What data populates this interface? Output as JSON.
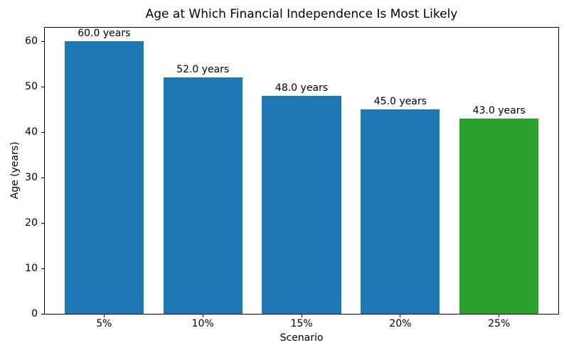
{
  "chart_data": {
    "type": "bar",
    "title": "Age at Which Financial Independence Is Most Likely",
    "xlabel": "Scenario",
    "ylabel": "Age (years)",
    "categories": [
      "5%",
      "10%",
      "15%",
      "20%",
      "25%"
    ],
    "values": [
      60.0,
      52.0,
      48.0,
      45.0,
      43.0
    ],
    "bar_labels": [
      "60.0 years",
      "52.0 years",
      "48.0 years",
      "45.0 years",
      "43.0 years"
    ],
    "bar_colors": [
      "#1f77b4",
      "#1f77b4",
      "#1f77b4",
      "#1f77b4",
      "#2ca02c"
    ],
    "ylim": [
      0,
      63
    ],
    "yticks": [
      0,
      10,
      20,
      30,
      40,
      50,
      60
    ],
    "grid": false,
    "legend_position": "none",
    "background_color": "#ffffff",
    "text_color": "#000000"
  }
}
